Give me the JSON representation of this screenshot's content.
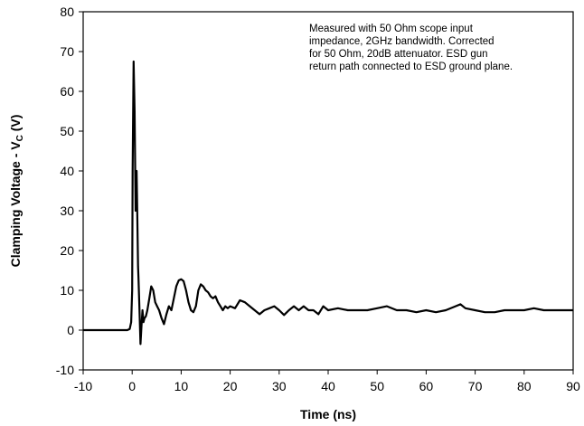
{
  "chart_data": {
    "type": "line",
    "xlabel": "Time (ns)",
    "ylabel_main": "Clamping Voltage - V",
    "ylabel_sub": "C",
    "ylabel_suffix": " (V)",
    "xlim": [
      -10,
      90
    ],
    "ylim": [
      -10,
      80
    ],
    "xticks": [
      -10,
      0,
      10,
      20,
      30,
      40,
      50,
      60,
      70,
      80,
      90
    ],
    "yticks": [
      -10,
      0,
      10,
      20,
      30,
      40,
      50,
      60,
      70,
      80
    ],
    "grid": false,
    "annotation": [
      "Measured with 50 Ohm scope input",
      "impedance, 2GHz bandwidth. Corrected",
      "for 50 Ohm, 20dB attenuator. ESD gun",
      "return path connected to ESD ground plane."
    ],
    "series": [
      {
        "color": "#000000",
        "x": [
          -10,
          -1,
          -0.5,
          -0.2,
          0,
          0.1,
          0.3,
          0.5,
          0.7,
          0.9,
          1.0,
          1.2,
          1.3,
          1.5,
          1.7,
          1.9,
          2.1,
          2.3,
          2.5,
          2.8,
          3.1,
          3.5,
          3.9,
          4.3,
          4.7,
          5.1,
          5.5,
          6.0,
          6.5,
          7.0,
          7.5,
          8.0,
          8.5,
          9.0,
          9.5,
          10.0,
          10.5,
          11.0,
          11.5,
          12.0,
          12.5,
          13.0,
          13.5,
          14.0,
          14.5,
          15.0,
          15.5,
          16.0,
          16.5,
          17.0,
          17.5,
          18.0,
          18.5,
          19.0,
          19.5,
          20.0,
          21.0,
          22.0,
          23.0,
          24.0,
          25.0,
          26.0,
          27.0,
          28.0,
          29.0,
          30.0,
          31.0,
          32.0,
          33.0,
          34.0,
          35.0,
          36.0,
          37.0,
          38.0,
          39.0,
          40.0,
          42.0,
          44.0,
          46.0,
          48.0,
          50.0,
          52.0,
          54.0,
          56.0,
          58.0,
          60.0,
          62.0,
          64.0,
          66.0,
          67.0,
          68.0,
          70.0,
          72.0,
          74.0,
          76.0,
          78.0,
          80.0,
          82.0,
          84.0,
          86.0,
          88.0,
          90.0
        ],
        "y": [
          0,
          0,
          0.3,
          2,
          10,
          40,
          67.5,
          55,
          30,
          40,
          33,
          16,
          13,
          5,
          -3.5,
          1,
          5,
          2,
          3,
          3.5,
          5,
          8,
          11,
          10,
          7,
          6,
          5,
          3,
          1.5,
          4,
          6,
          5,
          8,
          11,
          12.5,
          12.8,
          12.3,
          10,
          7,
          5,
          4.5,
          6,
          10,
          11.5,
          11,
          10,
          9.5,
          8.5,
          8,
          8.5,
          7,
          6,
          5,
          6,
          5.5,
          6,
          5.5,
          7.5,
          7,
          6,
          5,
          4,
          5,
          5.5,
          6,
          5,
          3.8,
          5,
          6,
          5,
          6,
          5,
          5,
          4,
          6,
          5,
          5.5,
          5,
          5,
          5,
          5.5,
          6,
          5,
          5,
          4.5,
          5,
          4.5,
          5,
          6,
          6.5,
          5.5,
          5,
          4.5,
          4.5,
          5,
          5,
          5,
          5.5,
          5,
          5,
          5,
          5
        ]
      }
    ]
  }
}
